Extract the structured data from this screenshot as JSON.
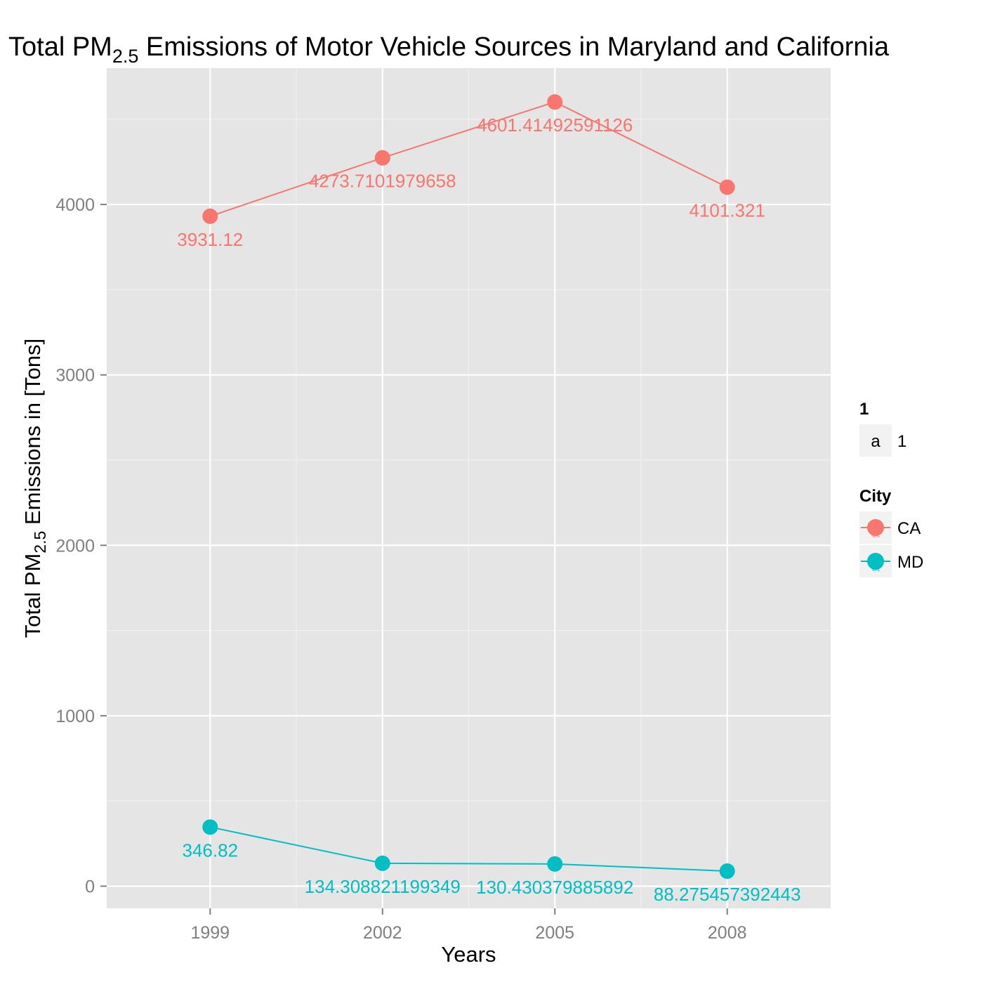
{
  "chart_data": {
    "type": "line",
    "title_prefix": "Total PM",
    "title_subscript": "2.5",
    "title_suffix": " Emissions of Motor Vehicle Sources in Maryland and California",
    "xlabel": "Years",
    "ylabel_prefix": "Total PM",
    "ylabel_subscript": "2.5",
    "ylabel_suffix": " Emissions in [Tons]",
    "x": [
      1999,
      2002,
      2005,
      2008
    ],
    "x_tick_labels": [
      "1999",
      "2002",
      "2005",
      "2008"
    ],
    "y_ticks": [
      0,
      1000,
      2000,
      3000,
      4000
    ],
    "y_tick_labels": [
      "0",
      "1000",
      "2000",
      "3000",
      "4000"
    ],
    "xlim": [
      1997.2,
      2009.8
    ],
    "ylim": [
      -130,
      4800
    ],
    "grid": true,
    "legend_position": "right",
    "series": [
      {
        "name": "CA",
        "color": "#F8766D",
        "values": [
          3931.12,
          4273.7101979658,
          4601.41492591126,
          4101.321
        ],
        "labels": [
          "3931.12",
          "4273.7101979658",
          "4601.41492591126",
          "4101.321"
        ]
      },
      {
        "name": "MD",
        "color": "#00BFC4",
        "values": [
          346.82,
          134.308821199349,
          130.430379885892,
          88.275457392443
        ],
        "labels": [
          "346.82",
          "134.308821199349",
          "130.430379885892",
          "88.275457392443"
        ]
      }
    ],
    "legends": [
      {
        "title": "1",
        "items": [
          {
            "key_glyph": "a",
            "label": "1"
          }
        ]
      },
      {
        "title": "City",
        "items": [
          {
            "label": "CA",
            "series": 0
          },
          {
            "label": "MD",
            "series": 1
          }
        ]
      }
    ],
    "colors": {
      "panel": "#E5E5E5",
      "grid": "#FFFFFF",
      "tick_text": "#7F7F7F",
      "text": "#000000",
      "legend_key": "#F2F2F2"
    }
  }
}
